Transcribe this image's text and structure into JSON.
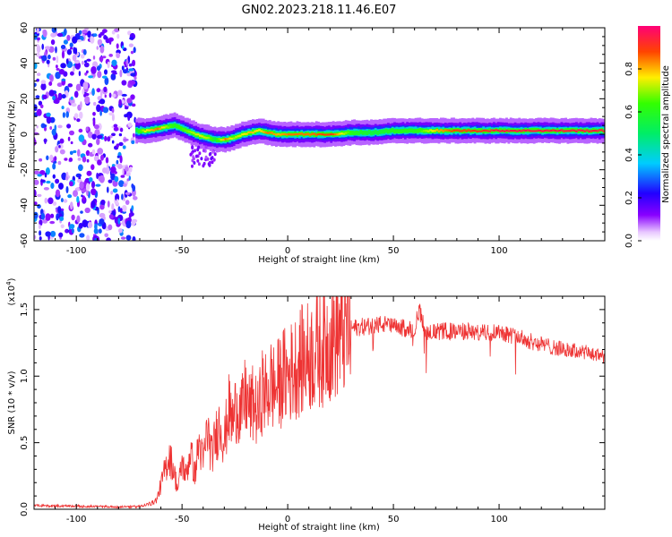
{
  "title": "GN02.2023.218.11.46.E07",
  "colors": {
    "snr_line": "#ee3333",
    "axis": "#000000",
    "background": "#ffffff"
  },
  "chart_data": [
    {
      "type": "heatmap",
      "xlabel": "Height of straight line (km)",
      "ylabel": "Frequency (Hz)",
      "xlim": [
        -120,
        150
      ],
      "ylim": [
        -60,
        60
      ],
      "x_ticks": [
        -100,
        -50,
        0,
        50,
        100
      ],
      "y_ticks": [
        -60,
        -40,
        -20,
        0,
        20,
        40,
        60
      ],
      "colorbar": {
        "label": "Normalized spectral amplitude",
        "range": [
          0,
          1
        ],
        "ticks": [
          0.0,
          0.2,
          0.4,
          0.6,
          0.8
        ],
        "colormap": "rainbow (magenta-blue-cyan-green-yellow-red)"
      },
      "noise_region_x": [
        -120,
        -72
      ],
      "ridge": {
        "description": "frequency of peak spectral amplitude vs height",
        "x": [
          -72,
          -68,
          -62,
          -58,
          -54,
          -50,
          -46,
          -42,
          -38,
          -35,
          -30,
          -26,
          -22,
          -18,
          -14,
          -10,
          -5,
          0,
          10,
          20,
          30,
          40,
          50,
          60,
          70,
          80,
          90,
          100,
          110,
          120,
          130,
          140,
          150
        ],
        "y": [
          2,
          2,
          3,
          4,
          5,
          3,
          1,
          -1,
          -2,
          -3,
          -3,
          -2,
          0,
          1,
          2,
          1,
          0,
          0,
          0,
          0,
          1,
          1,
          2,
          2,
          2,
          2,
          2,
          2,
          2,
          2,
          2,
          2,
          2
        ],
        "amplitude": [
          0.55,
          0.75,
          0.85,
          0.7,
          0.6,
          0.65,
          0.7,
          0.75,
          0.7,
          0.55,
          0.85,
          0.7,
          0.75,
          0.8,
          0.75,
          0.85,
          0.8,
          0.85,
          0.85,
          0.9,
          0.6,
          0.55,
          0.6,
          0.6,
          0.8,
          0.9,
          0.9,
          0.95,
          0.95,
          0.95,
          0.95,
          0.95,
          0.95
        ]
      }
    },
    {
      "type": "line",
      "xlabel": "Height of straight line (km)",
      "ylabel": "SNR (10 * v/v)",
      "y_multiplier": "(x10",
      "y_multiplier_exp": "4",
      "y_multiplier_close": ")",
      "xlim": [
        -120,
        150
      ],
      "ylim": [
        0,
        16000
      ],
      "x_ticks": [
        -100,
        -50,
        0,
        50,
        100
      ],
      "y_ticks": [
        0.0,
        0.5,
        1.0,
        1.5
      ],
      "series": [
        {
          "x": [
            -120,
            -100,
            -80,
            -70,
            -66,
            -62,
            -60,
            -58,
            -56,
            -54,
            -52,
            -50,
            -48,
            -46,
            -44,
            -42,
            -40,
            -38,
            -36,
            -34,
            -32,
            -30,
            -28,
            -26,
            -24,
            -22,
            -20,
            -18,
            -16,
            -14,
            -12,
            -10,
            -8,
            -6,
            -4,
            -2,
            0,
            5,
            10,
            15,
            20,
            25,
            30,
            35,
            40,
            45,
            50,
            55,
            60,
            62,
            65,
            70,
            75,
            80,
            85,
            90,
            95,
            100,
            105,
            110,
            115,
            120,
            125,
            130,
            135,
            140,
            145,
            150
          ],
          "y": [
            200,
            150,
            100,
            150,
            300,
            700,
            1800,
            3000,
            4000,
            3000,
            1500,
            3500,
            2500,
            4500,
            2500,
            5000,
            3500,
            6000,
            4000,
            5500,
            6500,
            5000,
            7500,
            6500,
            8000,
            7000,
            8500,
            7500,
            8000,
            7000,
            9000,
            8500,
            9500,
            9000,
            9500,
            10000,
            10000,
            11000,
            11500,
            12000,
            12800,
            13200,
            13600,
            13700,
            13800,
            13900,
            13700,
            13600,
            13500,
            15000,
            13400,
            13300,
            13400,
            13300,
            13400,
            13200,
            13300,
            13400,
            13100,
            12900,
            12600,
            12400,
            12200,
            12000,
            11900,
            11800,
            11600,
            11500
          ],
          "color": "#ee3333"
        }
      ]
    }
  ]
}
